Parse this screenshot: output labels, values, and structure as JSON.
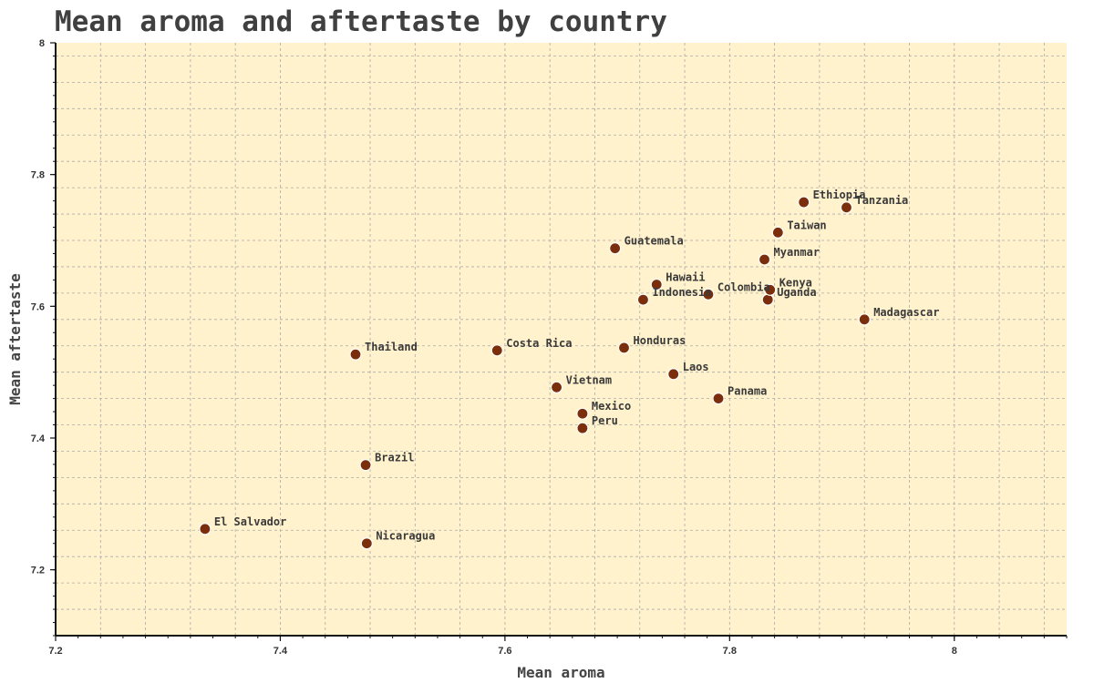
{
  "chart_data": {
    "type": "scatter",
    "title": "Mean aroma and aftertaste by country",
    "xlabel": "Mean aroma",
    "ylabel": "Mean aftertaste",
    "xlim": [
      7.2,
      8.1
    ],
    "ylim": [
      7.1,
      8.0
    ],
    "x_major_ticks": [
      7.2,
      7.4,
      7.6,
      7.8,
      8
    ],
    "x_tick_labels": [
      "7.2",
      "7.4",
      "7.6",
      "7.8",
      "8"
    ],
    "y_major_ticks": [
      7.2,
      7.4,
      7.6,
      7.8,
      8
    ],
    "y_tick_labels": [
      "7.2",
      "7.4",
      "7.6",
      "7.8",
      "8"
    ],
    "grid": true,
    "colors": {
      "plot_background": "#fff2cc",
      "marker": "#7b2e0c",
      "grid": "#aaaaaa",
      "text": "#404040"
    },
    "points": [
      {
        "label": "El Salvador",
        "x": 7.333,
        "y": 7.262
      },
      {
        "label": "Nicaragua",
        "x": 7.477,
        "y": 7.24
      },
      {
        "label": "Brazil",
        "x": 7.476,
        "y": 7.359
      },
      {
        "label": "Thailand",
        "x": 7.467,
        "y": 7.527
      },
      {
        "label": "Costa Rica",
        "x": 7.593,
        "y": 7.533
      },
      {
        "label": "Vietnam",
        "x": 7.646,
        "y": 7.477
      },
      {
        "label": "Mexico",
        "x": 7.669,
        "y": 7.437
      },
      {
        "label": "Peru",
        "x": 7.669,
        "y": 7.415
      },
      {
        "label": "Guatemala",
        "x": 7.698,
        "y": 7.688
      },
      {
        "label": "Honduras",
        "x": 7.706,
        "y": 7.537
      },
      {
        "label": "Indonesia",
        "x": 7.723,
        "y": 7.61
      },
      {
        "label": "Hawaii",
        "x": 7.735,
        "y": 7.633
      },
      {
        "label": "Laos",
        "x": 7.75,
        "y": 7.497
      },
      {
        "label": "Colombia",
        "x": 7.781,
        "y": 7.618
      },
      {
        "label": "Panama",
        "x": 7.79,
        "y": 7.46
      },
      {
        "label": "Myanmar",
        "x": 7.831,
        "y": 7.671
      },
      {
        "label": "Uganda",
        "x": 7.834,
        "y": 7.61
      },
      {
        "label": "Kenya",
        "x": 7.836,
        "y": 7.625
      },
      {
        "label": "Taiwan",
        "x": 7.843,
        "y": 7.712
      },
      {
        "label": "Ethiopia",
        "x": 7.866,
        "y": 7.758
      },
      {
        "label": "Tanzania",
        "x": 7.904,
        "y": 7.75
      },
      {
        "label": "Madagascar",
        "x": 7.92,
        "y": 7.58
      }
    ]
  }
}
